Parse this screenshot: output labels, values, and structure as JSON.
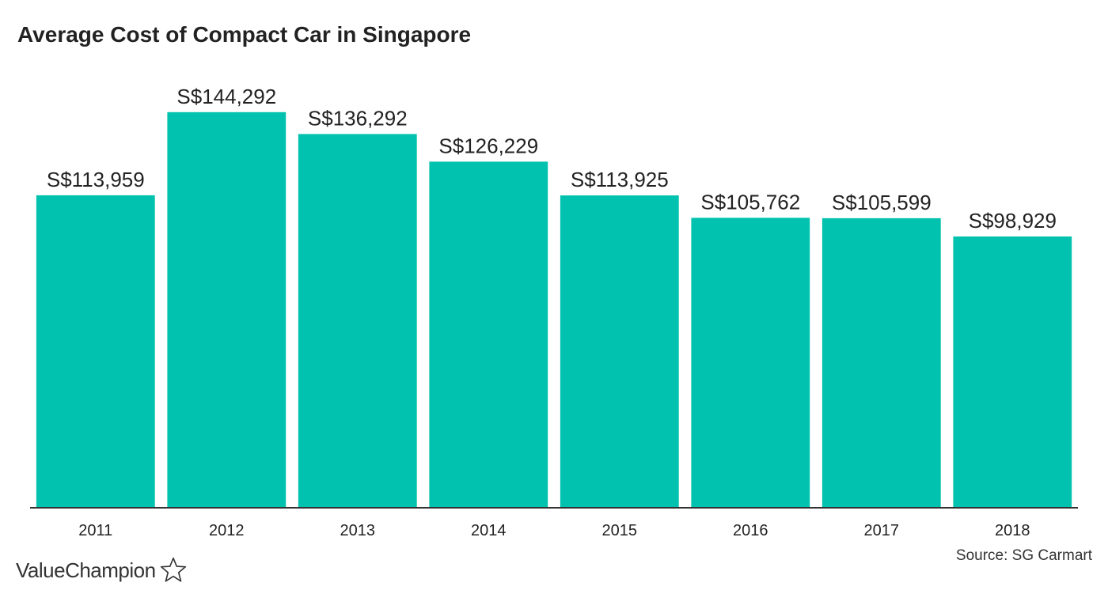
{
  "chart_data": {
    "type": "bar",
    "title": "Average Cost of Compact Car in Singapore",
    "categories": [
      "2011",
      "2012",
      "2013",
      "2014",
      "2015",
      "2016",
      "2017",
      "2018"
    ],
    "values": [
      113959,
      144292,
      136292,
      126229,
      113925,
      105762,
      105599,
      98929
    ],
    "data_labels": [
      "S$113,959",
      "S$144,292",
      "S$136,292",
      "S$126,229",
      "S$113,925",
      "S$105,762",
      "S$105,599",
      "S$98,929"
    ],
    "xlabel": "",
    "ylabel": "",
    "ylim": [
      0,
      165000
    ],
    "grid": false,
    "bar_color": "#00c2ae",
    "axis_color": "#333333"
  },
  "source": "Source: SG Carmart",
  "brand": {
    "name": "ValueChampion",
    "icon": "star-outline-icon"
  }
}
